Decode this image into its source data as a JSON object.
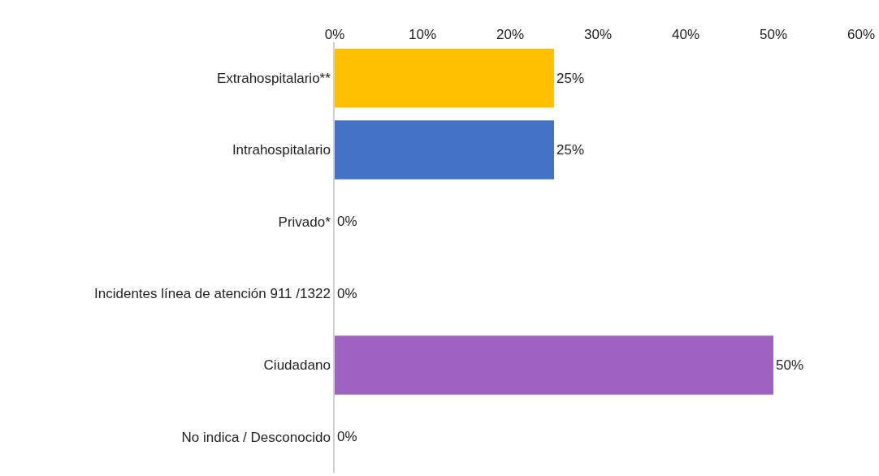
{
  "chart_data": {
    "type": "bar",
    "orientation": "horizontal",
    "categories": [
      "Extrahospitalario**",
      "Intrahospitalario",
      "Privado*",
      "Incidentes línea de atención 911 /1322",
      "Ciudadano",
      "No indica / Desconocido"
    ],
    "values": [
      25,
      25,
      0,
      0,
      50,
      0
    ],
    "colors": [
      "#ffc000",
      "#4472c4",
      "#a5a5a5",
      "#a5a5a5",
      "#9e63c1",
      "#a5a5a5"
    ],
    "value_labels": [
      "25%",
      "25%",
      "0%",
      "0%",
      "50%",
      "0%"
    ],
    "xlim": [
      0,
      60
    ],
    "xticks": [
      {
        "value": 0,
        "label": "0%"
      },
      {
        "value": 10,
        "label": "10%"
      },
      {
        "value": 20,
        "label": "20%"
      },
      {
        "value": 30,
        "label": "30%"
      },
      {
        "value": 40,
        "label": "40%"
      },
      {
        "value": 50,
        "label": "50%"
      },
      {
        "value": 60,
        "label": "60%"
      }
    ],
    "grid": false,
    "legend": false
  }
}
